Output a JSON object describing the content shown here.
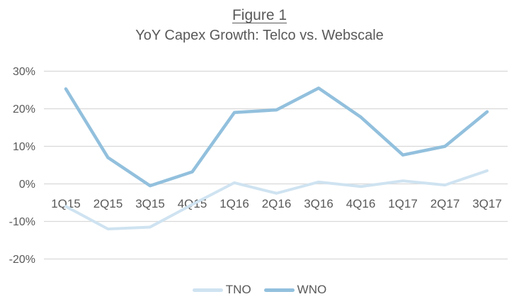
{
  "figure": {
    "title": "Figure 1",
    "subtitle": "YoY Capex Growth: Telco vs. Webscale"
  },
  "legend": {
    "items": [
      {
        "label": "TNO",
        "color": "#cfe3f1"
      },
      {
        "label": "WNO",
        "color": "#92c0dd"
      }
    ]
  },
  "chart_data": {
    "type": "line",
    "title": "YoY Capex Growth: Telco vs. Webscale",
    "categories": [
      "1Q15",
      "2Q15",
      "3Q15",
      "4Q15",
      "1Q16",
      "2Q16",
      "3Q16",
      "4Q16",
      "1Q17",
      "2Q17",
      "3Q17"
    ],
    "series": [
      {
        "name": "TNO",
        "color": "#cfe3f1",
        "values": [
          -6,
          -12,
          -11.5,
          -5.5,
          0.3,
          -2.5,
          0.5,
          -0.7,
          0.8,
          -0.3,
          3.5
        ]
      },
      {
        "name": "WNO",
        "color": "#92c0dd",
        "values": [
          25.3,
          7,
          -0.5,
          3.2,
          19,
          19.7,
          25.5,
          17.8,
          7.7,
          10,
          19.2
        ]
      }
    ],
    "xlabel": "",
    "ylabel": "",
    "ylim": [
      -20,
      30
    ],
    "ytick_step": 10,
    "yticks": [
      "30%",
      "20%",
      "10%",
      "0%",
      "-10%",
      "-20%"
    ],
    "ytick_values": [
      30,
      20,
      10,
      0,
      -10,
      -20
    ],
    "grid": "horizontal",
    "legend_position": "bottom"
  },
  "colors": {
    "text": "#595959",
    "gridline": "#d9d9d9",
    "background": "#ffffff"
  }
}
